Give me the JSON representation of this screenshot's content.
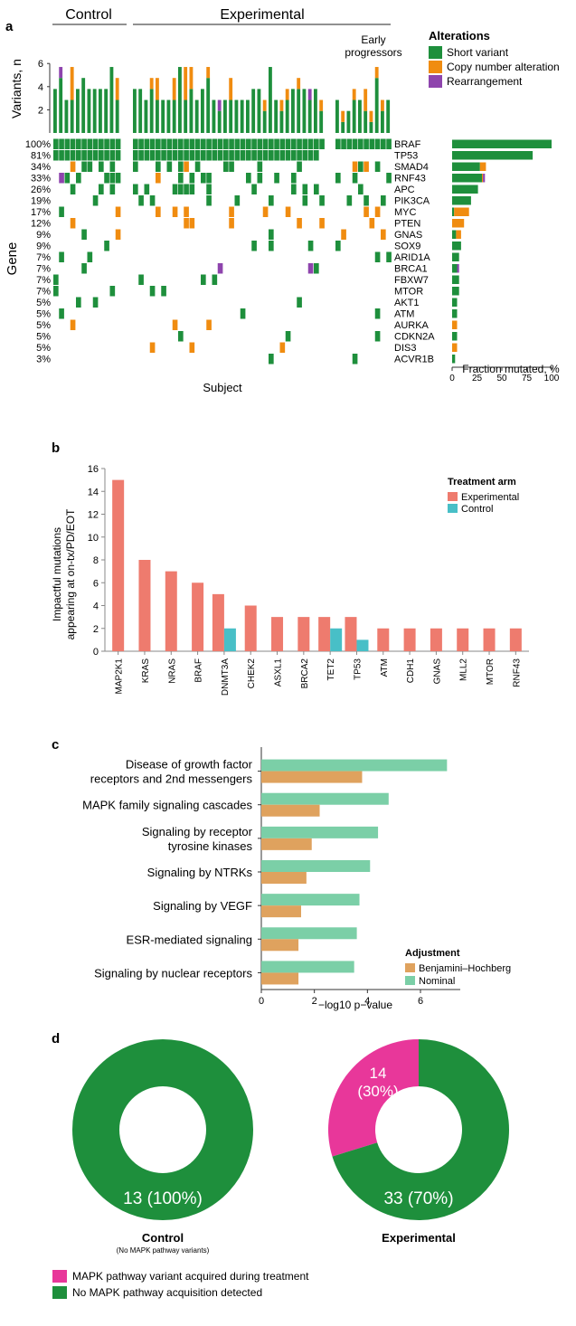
{
  "colors": {
    "short_variant": "#1e8f3c",
    "copy_number": "#f08c10",
    "rearrangement": "#8e44ad",
    "experimental": "#ee7b6e",
    "control": "#48bfc7",
    "bh": "#dfa25e",
    "nominal": "#7bcfa7",
    "mapk_acquired": "#e8379a",
    "no_mapk": "#1e8f3c"
  },
  "panel_a": {
    "label": "a",
    "group_control": "Control",
    "group_experimental": "Experimental",
    "group_early": [
      "Early",
      "progressors"
    ],
    "ylabel_top": "Variants, n",
    "ylabel_gene": "Gene",
    "xlabel": "Subject",
    "legend_title": "Alterations",
    "legend": [
      "Short variant",
      "Copy number alteration",
      "Rearrangement"
    ],
    "bar_xlabel": "Fraction mutated, %"
  },
  "panel_b": {
    "label": "b",
    "legend_title": "Treatment arm",
    "legend": [
      "Experimental",
      "Control"
    ],
    "ylabel": [
      "Impactful mutations",
      "appearing at on-tx/PD/EOT"
    ]
  },
  "panel_c": {
    "label": "c",
    "legend_title": "Adjustment",
    "legend": [
      "Benjamini–Hochberg",
      "Nominal"
    ],
    "xlabel": "−log10 p−value"
  },
  "panel_d": {
    "label": "d",
    "control_title": "Control",
    "control_subtitle": "(No MAPK pathway variants)",
    "experimental_title": "Experimental",
    "control_center_label": "13 (100%)",
    "exp_pink_label": [
      "14",
      "(30%)"
    ],
    "exp_green_label": "33 (70%)",
    "legend": [
      "MAPK pathway variant acquired during treatment",
      "No MAPK pathway acquisition detected"
    ]
  },
  "chart_data": [
    {
      "type": "heatmap",
      "title": "",
      "xlabel": "Subject",
      "ylabel": "Gene",
      "genes": [
        "BRAF",
        "TP53",
        "SMAD4",
        "RNF43",
        "APC",
        "PIK3CA",
        "MYC",
        "PTEN",
        "GNAS",
        "SOX9",
        "ARID1A",
        "BRCA1",
        "FBXW7",
        "MTOR",
        "AKT1",
        "ATM",
        "AURKA",
        "CDKN2A",
        "DIS3",
        "ACVR1B"
      ],
      "percent_labels": [
        "100%",
        "81%",
        "34%",
        "33%",
        "26%",
        "19%",
        "17%",
        "12%",
        "9%",
        "9%",
        "7%",
        "7%",
        "7%",
        "7%",
        "5%",
        "5%",
        "5%",
        "5%",
        "5%",
        "3%"
      ],
      "columns": {
        "control": 12,
        "experimental": 34,
        "early_progressors": 10
      },
      "top_yticks": [
        "6",
        "4",
        "2"
      ],
      "legend": [
        "Short variant",
        "Copy number alteration",
        "Rearrangement"
      ]
    },
    {
      "type": "bar",
      "orientation": "horizontal",
      "categories": [
        "BRAF",
        "TP53",
        "SMAD4",
        "RNF43",
        "APC",
        "PIK3CA",
        "MYC",
        "PTEN",
        "GNAS",
        "SOX9",
        "ARID1A",
        "BRCA1",
        "FBXW7",
        "MTOR",
        "AKT1",
        "ATM",
        "AURKA",
        "CDKN2A",
        "DIS3",
        "ACVR1B"
      ],
      "series": [
        {
          "name": "Short variant",
          "values": [
            100,
            81,
            28,
            30,
            26,
            19,
            2,
            0,
            4,
            9,
            7,
            5,
            7,
            7,
            5,
            5,
            0,
            5,
            0,
            3
          ]
        },
        {
          "name": "Copy number alteration",
          "values": [
            0,
            0,
            6,
            1,
            0,
            0,
            15,
            12,
            5,
            0,
            0,
            0,
            0,
            0,
            0,
            0,
            5,
            0,
            5,
            0
          ]
        },
        {
          "name": "Rearrangement",
          "values": [
            0,
            0,
            0,
            2,
            0,
            0,
            0,
            0,
            0,
            0,
            0,
            2,
            0,
            0,
            0,
            0,
            0,
            0,
            0,
            0
          ]
        }
      ],
      "xlabel": "Fraction mutated, %",
      "xlim": [
        0,
        100
      ],
      "xticks": [
        0,
        25,
        50,
        75,
        100
      ]
    },
    {
      "type": "bar",
      "categories": [
        "MAP2K1",
        "KRAS",
        "NRAS",
        "BRAF",
        "DNMT3A",
        "CHEK2",
        "ASXL1",
        "BRCA2",
        "TET2",
        "TP53",
        "ATM",
        "CDH1",
        "GNAS",
        "MLL2",
        "MTOR",
        "RNF43"
      ],
      "series": [
        {
          "name": "Experimental",
          "values": [
            15,
            8,
            7,
            6,
            5,
            4,
            3,
            3,
            3,
            3,
            2,
            2,
            2,
            2,
            2,
            2
          ]
        },
        {
          "name": "Control",
          "values": [
            0,
            0,
            0,
            0,
            2,
            0,
            0,
            0,
            2,
            1,
            0,
            0,
            0,
            0,
            0,
            0
          ]
        }
      ],
      "ylabel": "Impactful mutations appearing at on-tx/PD/EOT",
      "ylim": [
        0,
        16
      ],
      "yticks": [
        0,
        2,
        4,
        6,
        8,
        10,
        12,
        14,
        16
      ],
      "legend_title": "Treatment arm"
    },
    {
      "type": "bar",
      "orientation": "horizontal",
      "categories": [
        [
          "Disease of growth factor",
          "receptors and 2nd messengers"
        ],
        [
          "MAPK family signaling cascades"
        ],
        [
          "Signaling by receptor",
          "tyrosine kinases"
        ],
        [
          "Signaling by NTRKs"
        ],
        [
          "Signaling by VEGF"
        ],
        [
          "ESR-mediated signaling"
        ],
        [
          "Signaling by nuclear receptors"
        ]
      ],
      "series": [
        {
          "name": "Nominal",
          "values": [
            7.0,
            4.8,
            4.4,
            4.1,
            3.7,
            3.6,
            3.5
          ]
        },
        {
          "name": "Benjamini–Hochberg",
          "values": [
            3.8,
            2.2,
            1.9,
            1.7,
            1.5,
            1.4,
            1.4
          ]
        }
      ],
      "xlabel": "−log10 p−value",
      "xlim": [
        0,
        7.5
      ],
      "xticks": [
        0,
        2,
        4,
        6
      ],
      "legend_title": "Adjustment"
    },
    {
      "type": "pie",
      "donut": true,
      "title": "Control",
      "labels": [
        "No MAPK pathway acquisition detected"
      ],
      "values": [
        13
      ]
    },
    {
      "type": "pie",
      "donut": true,
      "title": "Experimental",
      "labels": [
        "MAPK pathway variant acquired during treatment",
        "No MAPK pathway acquisition detected"
      ],
      "values": [
        14,
        33
      ]
    }
  ]
}
